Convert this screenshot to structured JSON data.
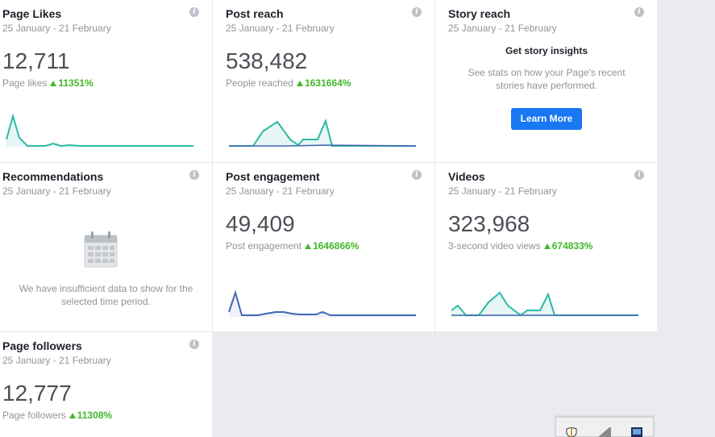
{
  "cards": {
    "page_likes": {
      "title": "Page Likes",
      "date": "25 January - 21 February",
      "value": "12,711",
      "sub": "Page likes",
      "pct": "11351%"
    },
    "post_reach": {
      "title": "Post reach",
      "date": "25 January - 21 February",
      "value": "538,482",
      "sub": "People reached",
      "pct": "1631664%"
    },
    "story_reach": {
      "title": "Story reach",
      "date": "25 January - 21 February",
      "heading": "Get story insights",
      "body": "See stats on how your Page's recent stories have performed.",
      "button": "Learn More"
    },
    "recommendations": {
      "title": "Recommendations",
      "date": "25 January - 21 February",
      "message": "We have insufficient data to show for the selected time period."
    },
    "post_engagement": {
      "title": "Post engagement",
      "date": "25 January - 21 February",
      "value": "49,409",
      "sub": "Post engagement",
      "pct": "1646866%"
    },
    "videos": {
      "title": "Videos",
      "date": "25 January - 21 February",
      "value": "323,968",
      "sub": "3-second video views",
      "pct": "674833%"
    },
    "page_followers": {
      "title": "Page followers",
      "date": "25 January - 21 February",
      "value": "12,777",
      "sub": "Page followers",
      "pct": "11308%"
    }
  },
  "info_glyph": "i",
  "colors": {
    "accent_teal": "#2cbaa7",
    "accent_blue": "#4267b2",
    "growth_green": "#42b72a",
    "button_blue": "#1877f2"
  },
  "icons": [
    "info-icon",
    "up-arrow-icon",
    "calendar-icon",
    "shield-icon",
    "network-icon",
    "monitor-icon"
  ]
}
